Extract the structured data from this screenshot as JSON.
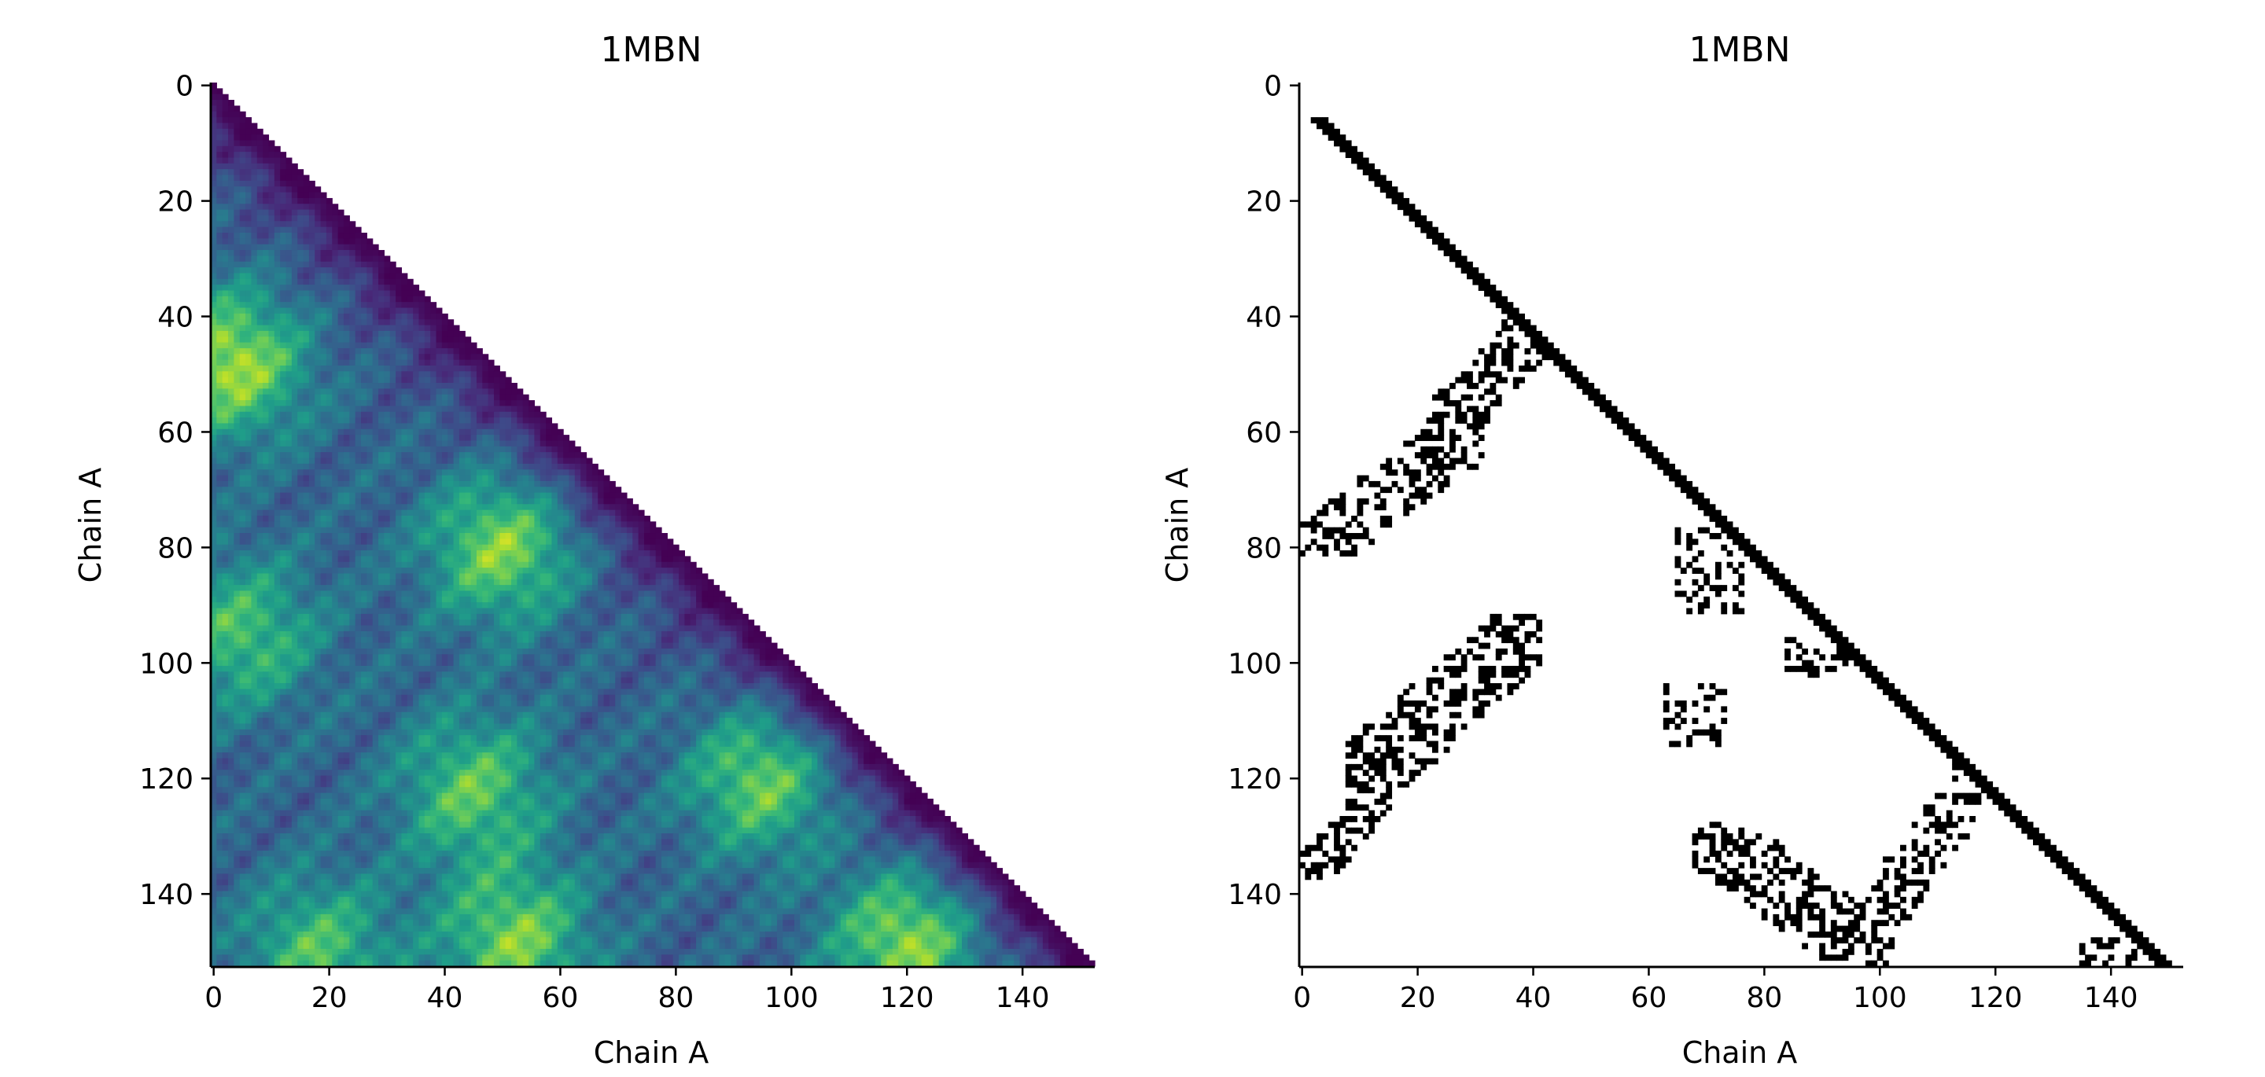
{
  "chart_data": [
    {
      "type": "heatmap",
      "title": "1MBN",
      "xlabel": "Chain A",
      "ylabel": "Chain A",
      "n_residues": 153,
      "xlim": [
        0,
        153
      ],
      "ylim": [
        153,
        0
      ],
      "xticks": [
        "0",
        "20",
        "40",
        "60",
        "80",
        "100",
        "120",
        "140"
      ],
      "yticks": [
        "0",
        "20",
        "40",
        "60",
        "80",
        "100",
        "120",
        "140"
      ],
      "colormap": "viridis",
      "masked_region": "upper triangle (j > i)",
      "hotspots": [
        {
          "i": 48,
          "j": 3,
          "value": 1.0
        },
        {
          "i": 80,
          "j": 50,
          "value": 0.9
        },
        {
          "i": 120,
          "j": 95,
          "value": 0.85
        },
        {
          "i": 148,
          "j": 120,
          "value": 0.95
        },
        {
          "i": 148,
          "j": 52,
          "value": 0.85
        },
        {
          "i": 122,
          "j": 45,
          "value": 0.75
        },
        {
          "i": 95,
          "j": 5,
          "value": 0.7
        },
        {
          "i": 150,
          "j": 18,
          "value": 0.7
        }
      ],
      "colors": {
        "low": "#440154",
        "high": "#fde725"
      }
    },
    {
      "type": "heatmap",
      "title": "1MBN",
      "xlabel": "Chain A",
      "ylabel": "Chain A",
      "n_residues": 153,
      "xlim": [
        0,
        153
      ],
      "ylim": [
        153,
        0
      ],
      "xticks": [
        "0",
        "20",
        "40",
        "60",
        "80",
        "100",
        "120",
        "140"
      ],
      "yticks": [
        "0",
        "20",
        "40",
        "60",
        "80",
        "100",
        "120",
        "140"
      ],
      "colormap": "binary",
      "contact_regions": [
        {
          "i_range": [
            37,
            62
          ],
          "j_range": [
            21,
            46
          ],
          "direction": "anti",
          "density": 0.45
        },
        {
          "i_range": [
            58,
            82
          ],
          "j_range": [
            0,
            32
          ],
          "direction": "anti",
          "density": 0.45
        },
        {
          "i_range": [
            92,
            122
          ],
          "j_range": [
            8,
            42
          ],
          "direction": "anti",
          "density": 0.45
        },
        {
          "i_range": [
            120,
            138
          ],
          "j_range": [
            0,
            16
          ],
          "direction": "anti",
          "density": 0.5
        },
        {
          "i_range": [
            77,
            92
          ],
          "j_range": [
            65,
            77
          ],
          "direction": "none",
          "density": 0.35
        },
        {
          "i_range": [
            104,
            115
          ],
          "j_range": [
            63,
            74
          ],
          "direction": "none",
          "density": 0.35
        },
        {
          "i_range": [
            128,
            153
          ],
          "j_range": [
            68,
            103
          ],
          "direction": "parallel",
          "density": 0.45
        },
        {
          "i_range": [
            118,
            146
          ],
          "j_range": [
            98,
            118
          ],
          "direction": "anti",
          "density": 0.45
        },
        {
          "i_range": [
            96,
            103
          ],
          "j_range": [
            84,
            95
          ],
          "direction": "none",
          "density": 0.4
        },
        {
          "i_range": [
            148,
            153
          ],
          "j_range": [
            135,
            150
          ],
          "direction": "none",
          "density": 0.4
        }
      ],
      "colors": {
        "contact": "#000000",
        "background": "#ffffff"
      }
    }
  ]
}
